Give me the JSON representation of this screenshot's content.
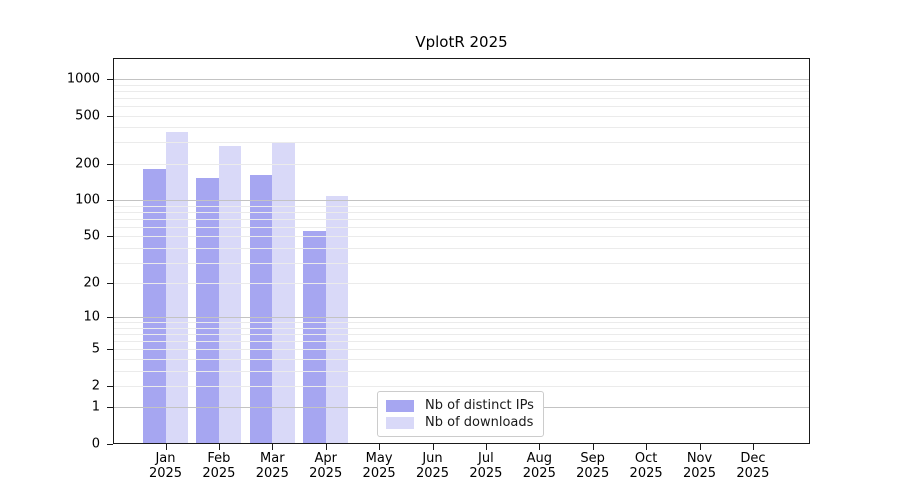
{
  "chart_data": {
    "type": "bar",
    "title": "VplotR 2025",
    "categories": [
      "Jan 2025",
      "Feb 2025",
      "Mar 2025",
      "Apr 2025",
      "May 2025",
      "Jun 2025",
      "Jul 2025",
      "Aug 2025",
      "Sep 2025",
      "Oct 2025",
      "Nov 2025",
      "Dec 2025"
    ],
    "series": [
      {
        "name": "Nb of distinct IPs",
        "color": "#a6a6f1",
        "values": [
          182,
          153,
          163,
          55,
          0,
          0,
          0,
          0,
          0,
          0,
          0,
          0
        ]
      },
      {
        "name": "Nb of downloads",
        "color": "#d9d9f8",
        "values": [
          364,
          279,
          298,
          108,
          0,
          0,
          0,
          0,
          0,
          0,
          0,
          0
        ]
      }
    ],
    "xlabel": "",
    "ylabel": "",
    "yscale": "log1p",
    "yticks": [
      0,
      1,
      2,
      5,
      10,
      20,
      50,
      100,
      200,
      500,
      1000
    ],
    "ylim": [
      0,
      1500
    ],
    "grid": "horizontal",
    "gridline_minor_color": "#ebebeb",
    "gridline_major_color": "#c3c3c3",
    "legend_position": "lower center"
  }
}
